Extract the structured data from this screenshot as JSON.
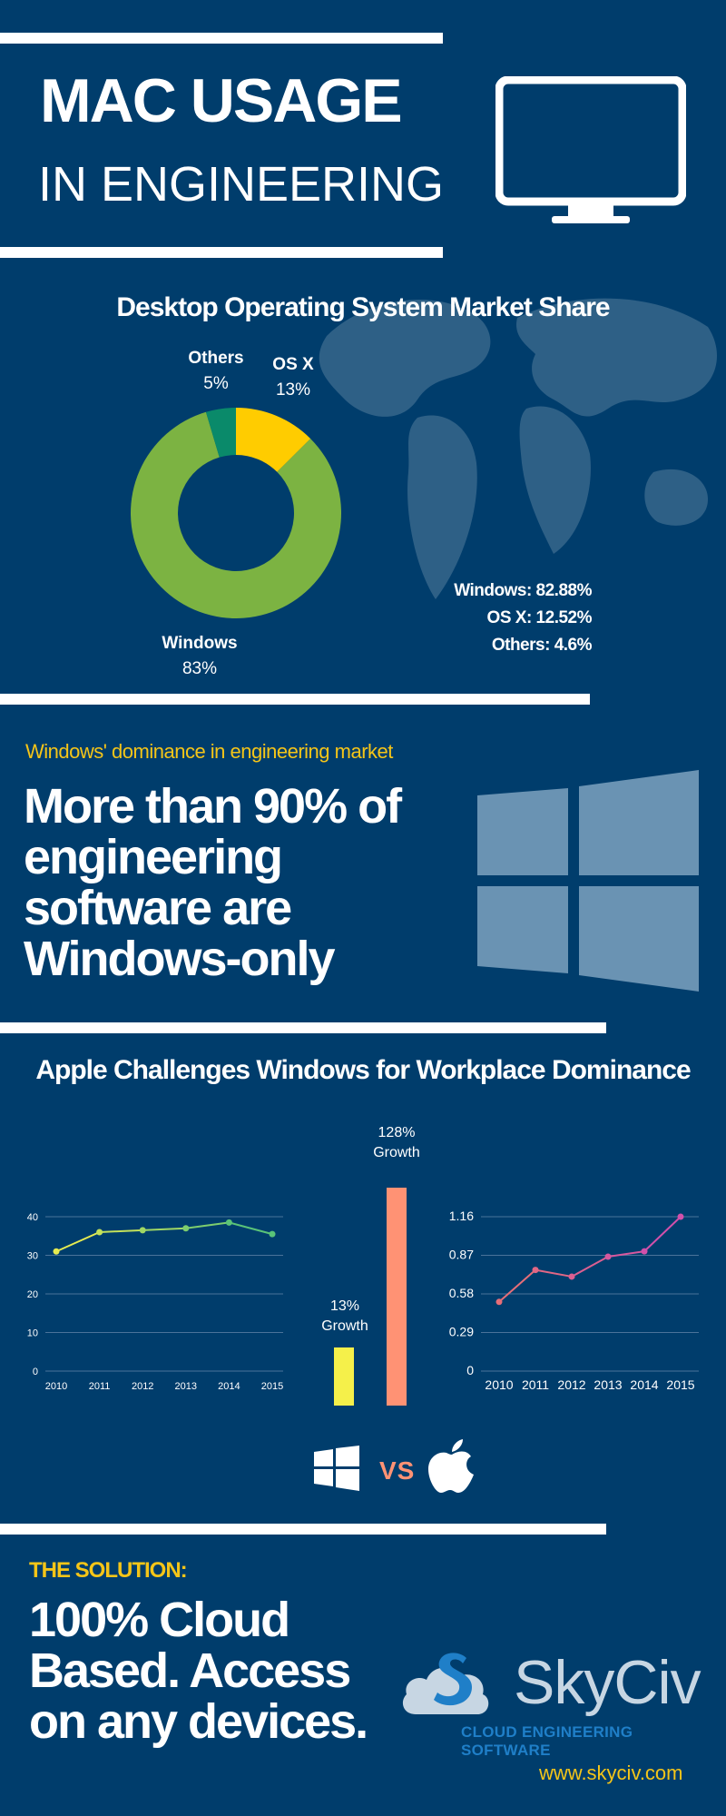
{
  "header": {
    "title": "MAC USAGE",
    "subtitle": "IN ENGINEERING",
    "icon": "monitor-icon"
  },
  "market_share": {
    "heading": "Desktop Operating System Market Share",
    "labels": {
      "others_name": "Others",
      "others_pct": "5%",
      "osx_name": "OS X",
      "osx_pct": "13%",
      "windows_name": "Windows",
      "windows_pct": "83%"
    },
    "stats": [
      "Windows: 82.88%",
      "OS X: 12.52%",
      "Others: 4.6%"
    ]
  },
  "dominance": {
    "kicker": "Windows' dominance in engineering market",
    "lines": [
      "More than 90% of",
      "engineering",
      "software are",
      "Windows-only"
    ],
    "icon": "windows-logo-icon"
  },
  "challenge": {
    "heading": "Apple Challenges Windows for Workplace Dominance",
    "growth_windows": [
      "13%",
      "Growth"
    ],
    "growth_apple": [
      "128%",
      "Growth"
    ],
    "vs": "VS"
  },
  "solution": {
    "kicker": "THE SOLUTION:",
    "lines": [
      "100% Cloud",
      "Based. Access",
      "on any devices."
    ],
    "brand": "SkyCiv",
    "brand_tagline": "CLOUD ENGINEERING SOFTWARE",
    "url": "www.skyciv.com"
  },
  "colors": {
    "background": "#003d6c",
    "windows_green": "#7cb342",
    "osx_yellow": "#ffcc00",
    "others_teal": "#0a8a6a",
    "accent_yellow": "#f5c518",
    "apple_salmon": "#ff9274",
    "windows_bar_yellow": "#f5f04a",
    "apple_line_pink": "#e060a0"
  },
  "chart_data": [
    {
      "type": "pie",
      "title": "Desktop Operating System Market Share",
      "categories": [
        "OS X",
        "Windows",
        "Others"
      ],
      "values": [
        12.52,
        82.88,
        4.6
      ],
      "colors": [
        "#ffcc00",
        "#7cb342",
        "#0a8a6a"
      ]
    },
    {
      "type": "line",
      "x": [
        "2010",
        "2011",
        "2012",
        "2013",
        "2014",
        "2015"
      ],
      "series": [
        {
          "values": [
            31,
            36,
            36.5,
            37,
            38.5,
            35.5
          ]
        }
      ],
      "yticks": [
        "0",
        "10",
        "20",
        "30",
        "40"
      ],
      "ylim": [
        0,
        40
      ],
      "grid": true
    },
    {
      "type": "bar",
      "categories": [
        "Windows",
        "Apple"
      ],
      "values": [
        13,
        128
      ],
      "colors": [
        "#f5f04a",
        "#ff9274"
      ]
    },
    {
      "type": "line",
      "x": [
        "2010",
        "2011",
        "2012",
        "2013",
        "2014",
        "2015"
      ],
      "series": [
        {
          "values": [
            0.52,
            0.76,
            0.71,
            0.86,
            0.9,
            1.16
          ]
        }
      ],
      "yticks": [
        "0",
        "0.29",
        "0.58",
        "0.87",
        "1.16"
      ],
      "ylim": [
        0,
        1.16
      ],
      "grid": true
    }
  ]
}
